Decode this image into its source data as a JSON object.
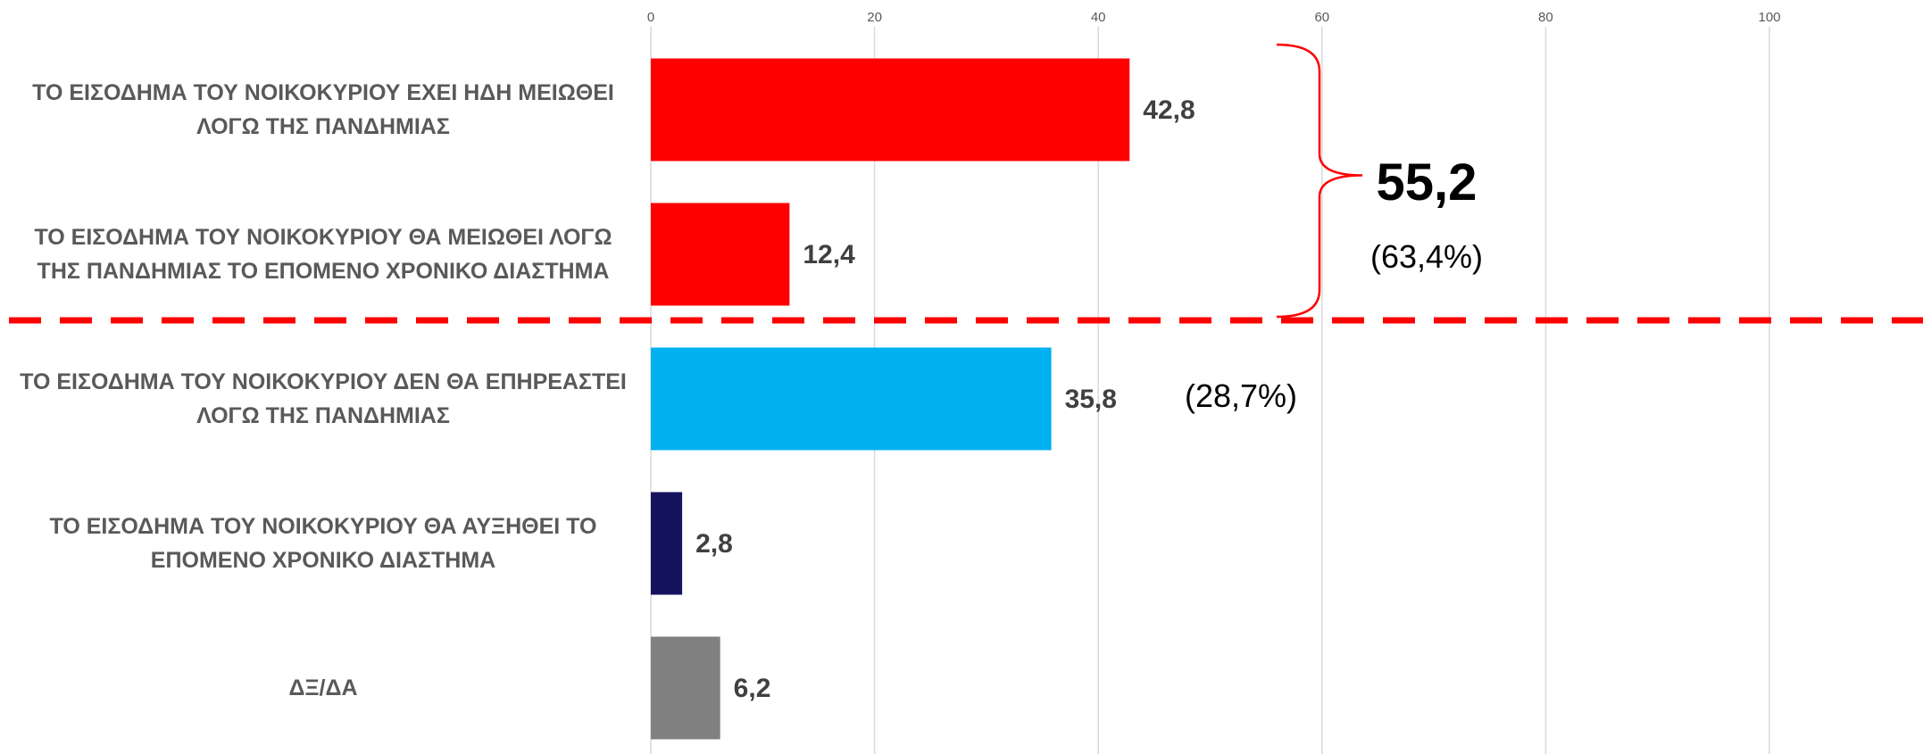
{
  "chart_data": {
    "type": "bar",
    "orientation": "horizontal",
    "xlim": [
      0,
      100
    ],
    "ticks": [
      "0",
      "20",
      "40",
      "60",
      "80",
      "100"
    ],
    "grid": true,
    "categories": [
      "ΤΟ ΕΙΣΟΔΗΜΑ ΤΟΥ ΝΟΙΚΟΚΥΡΙΟΥ ΕΧΕΙ ΗΔΗ ΜΕΙΩΘΕΙ ΛΟΓΩ ΤΗΣ ΠΑΝΔΗΜΙΑΣ",
      "ΤΟ ΕΙΣΟΔΗΜΑ ΤΟΥ ΝΟΙΚΟΚΥΡΙΟΥ ΘΑ ΜΕΙΩΘΕΙ ΛΟΓΩ ΤΗΣ ΠΑΝΔΗΜΙΑΣ ΤΟ ΕΠΟΜΕΝΟ ΧΡΟΝΙΚΟ ΔΙΑΣΤΗΜΑ",
      "ΤΟ ΕΙΣΟΔΗΜΑ ΤΟΥ ΝΟΙΚΟΚΥΡΙΟΥ ΔΕΝ ΘΑ ΕΠΗΡΕΑΣΤΕΙ ΛΟΓΩ ΤΗΣ ΠΑΝΔΗΜΙΑΣ",
      "ΤΟ ΕΙΣΟΔΗΜΑ ΤΟΥ ΝΟΙΚΟΚΥΡΙΟΥ ΘΑ ΑΥΞΗΘΕΙ ΤΟ ΕΠΟΜΕΝΟ ΧΡΟΝΙΚΟ ΔΙΑΣΤΗΜΑ",
      "ΔΞ/ΔΑ"
    ],
    "values": [
      42.8,
      12.4,
      35.8,
      2.8,
      6.2
    ],
    "value_labels": [
      "42,8",
      "12,4",
      "35,8",
      "2,8",
      "6,2"
    ],
    "colors": [
      "#ff0000",
      "#ff0000",
      "#00b0f0",
      "#16135e",
      "#808080"
    ],
    "annotations": {
      "group_total": "55,2",
      "group_share": "(63,4%)",
      "unaffected_share": "(28,7%)"
    },
    "separator_color": "#ff0000",
    "brace_color": "#ff0000",
    "axis_label_color": "#595959",
    "grid_color": "#d9d9d9"
  }
}
